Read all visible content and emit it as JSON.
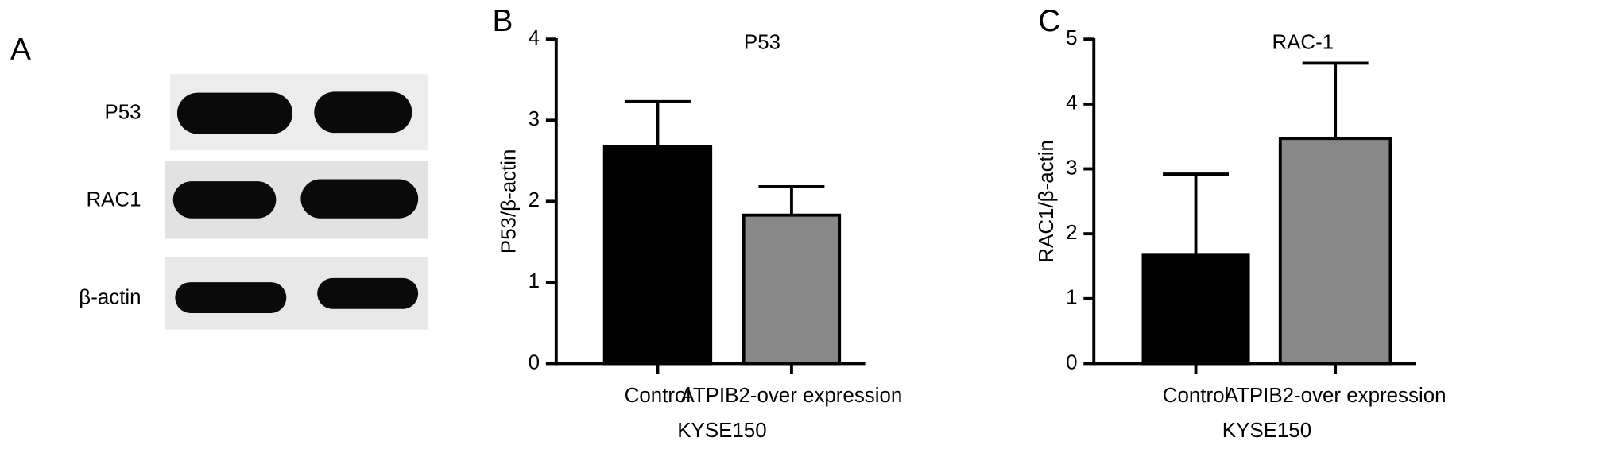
{
  "blot": {
    "label": "A",
    "rows": [
      "P53",
      "RAC1",
      "β-actin"
    ]
  },
  "chart_data": [
    {
      "type": "bar",
      "panel_label": "B",
      "title": "P53",
      "ylabel": "P53/β-actin",
      "xlabel": "KYSE150",
      "categories": [
        "Control",
        "ATPIB2-over expression"
      ],
      "values": [
        2.68,
        1.83
      ],
      "errors": [
        0.55,
        0.35
      ],
      "colors": [
        "#000000",
        "#888888"
      ],
      "ylim": [
        0,
        4
      ],
      "yticks": [
        0,
        1,
        2,
        3,
        4
      ]
    },
    {
      "type": "bar",
      "panel_label": "C",
      "title": "RAC-1",
      "ylabel": "RAC1/β-actin",
      "xlabel": "KYSE150",
      "categories": [
        "Control",
        "ATPIB2-over expression"
      ],
      "values": [
        1.68,
        3.47
      ],
      "errors": [
        1.24,
        1.16
      ],
      "colors": [
        "#000000",
        "#888888"
      ],
      "ylim": [
        0,
        5
      ],
      "yticks": [
        0,
        1,
        2,
        3,
        4,
        5
      ]
    }
  ]
}
